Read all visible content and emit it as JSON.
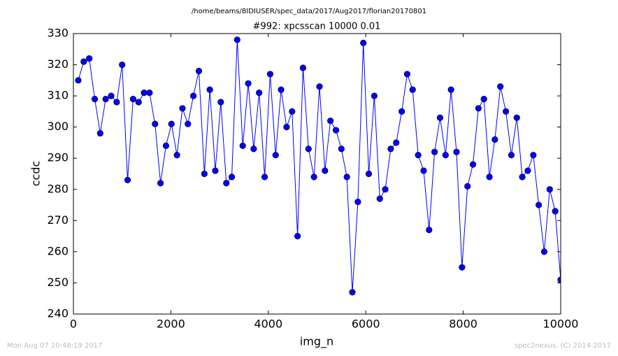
{
  "chart_data": {
    "type": "line",
    "suptitle": "/home/beams/8IDIUSER/spec_data/2017/Aug2017/florian20170801",
    "title": "#992: xpcsscan 10000 0.01",
    "xlabel": "img_n",
    "ylabel": "ccdc",
    "footer_left": "Mon Aug 07 10:48:19 2017",
    "footer_right": "spec2nexus, (C) 2014-2017",
    "xlim": [
      0,
      10000
    ],
    "ylim": [
      240,
      330
    ],
    "xticks": [
      0,
      2000,
      4000,
      6000,
      8000,
      10000
    ],
    "yticks": [
      240,
      250,
      260,
      270,
      280,
      290,
      300,
      310,
      320,
      330
    ],
    "x": [
      100,
      212,
      325,
      438,
      550,
      662,
      775,
      888,
      1000,
      1112,
      1225,
      1338,
      1450,
      1562,
      1675,
      1788,
      1900,
      2012,
      2125,
      2238,
      2350,
      2462,
      2575,
      2688,
      2800,
      2912,
      3025,
      3138,
      3250,
      3362,
      3475,
      3588,
      3700,
      3812,
      3925,
      4038,
      4150,
      4262,
      4375,
      4488,
      4600,
      4712,
      4825,
      4938,
      5050,
      5162,
      5275,
      5388,
      5500,
      5612,
      5725,
      5838,
      5950,
      6062,
      6175,
      6288,
      6400,
      6512,
      6625,
      6738,
      6850,
      6962,
      7075,
      7188,
      7300,
      7412,
      7525,
      7638,
      7750,
      7862,
      7975,
      8088,
      8200,
      8312,
      8425,
      8538,
      8650,
      8762,
      8875,
      8988,
      9100,
      9212,
      9325,
      9438,
      9550,
      9662,
      9775,
      9888,
      10000
    ],
    "series": [
      {
        "color": "#0000ff",
        "values": [
          315,
          321,
          322,
          309,
          298,
          309,
          310,
          308,
          320,
          283,
          309,
          308,
          311,
          311,
          301,
          282,
          294,
          301,
          291,
          306,
          301,
          310,
          318,
          285,
          312,
          286,
          308,
          282,
          284,
          328,
          294,
          314,
          293,
          311,
          284,
          317,
          291,
          312,
          300,
          305,
          265,
          319,
          293,
          284,
          313,
          286,
          302,
          299,
          293,
          284,
          247,
          276,
          327,
          285,
          310,
          277,
          280,
          293,
          295,
          305,
          317,
          312,
          291,
          286,
          267,
          292,
          303,
          291,
          312,
          292,
          255,
          281,
          288,
          306,
          309,
          284,
          296,
          313,
          305,
          291,
          303,
          284,
          286,
          291,
          275,
          260,
          280,
          273,
          251
        ]
      }
    ]
  }
}
